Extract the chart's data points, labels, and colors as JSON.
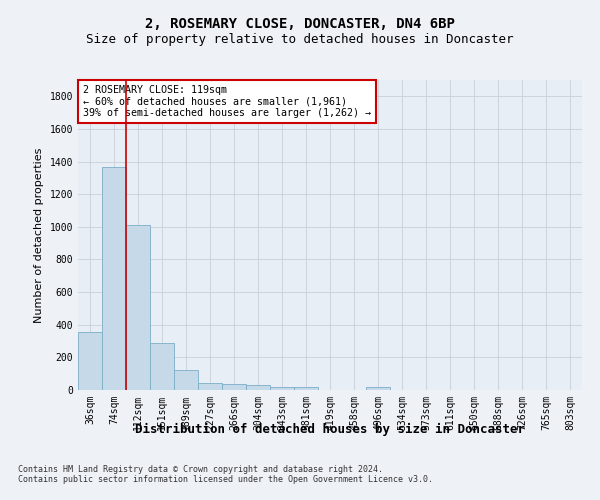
{
  "title": "2, ROSEMARY CLOSE, DONCASTER, DN4 6BP",
  "subtitle": "Size of property relative to detached houses in Doncaster",
  "xlabel": "Distribution of detached houses by size in Doncaster",
  "ylabel": "Number of detached properties",
  "bar_labels": [
    "36sqm",
    "74sqm",
    "112sqm",
    "151sqm",
    "189sqm",
    "227sqm",
    "266sqm",
    "304sqm",
    "343sqm",
    "381sqm",
    "419sqm",
    "458sqm",
    "496sqm",
    "534sqm",
    "573sqm",
    "611sqm",
    "650sqm",
    "688sqm",
    "726sqm",
    "765sqm",
    "803sqm"
  ],
  "bar_values": [
    355,
    1365,
    1010,
    290,
    125,
    42,
    35,
    28,
    20,
    16,
    0,
    0,
    18,
    0,
    0,
    0,
    0,
    0,
    0,
    0,
    0
  ],
  "bar_color": "#c5d9e8",
  "bar_edge_color": "#7badc8",
  "property_line_index": 2,
  "annotation_text": "2 ROSEMARY CLOSE: 119sqm\n← 60% of detached houses are smaller (1,961)\n39% of semi-detached houses are larger (1,262) →",
  "annotation_box_color": "#ffffff",
  "annotation_border_color": "#cc0000",
  "property_line_color": "#cc0000",
  "ylim": [
    0,
    1900
  ],
  "yticks": [
    0,
    200,
    400,
    600,
    800,
    1000,
    1200,
    1400,
    1600,
    1800
  ],
  "footer": "Contains HM Land Registry data © Crown copyright and database right 2024.\nContains public sector information licensed under the Open Government Licence v3.0.",
  "bg_color": "#eef2f7",
  "plot_bg_color": "#e8eef5",
  "grid_color": "#c8cfd8",
  "title_fontsize": 10,
  "subtitle_fontsize": 9,
  "tick_fontsize": 7,
  "ylabel_fontsize": 8,
  "xlabel_fontsize": 9,
  "footer_fontsize": 6
}
